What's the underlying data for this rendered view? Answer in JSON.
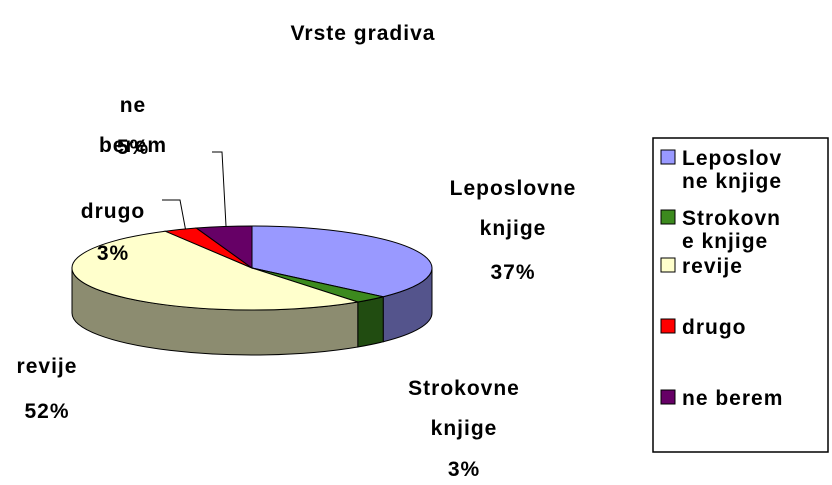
{
  "chart_data": {
    "type": "pie",
    "title": "Vrste gradiva",
    "categories": [
      "Leposlovne knjige",
      "Strokovne knjige",
      "revije",
      "drugo",
      "ne berem"
    ],
    "values": [
      37,
      3,
      52,
      3,
      5
    ],
    "value_labels": [
      "37%",
      "3%",
      "52%",
      "3%",
      "5%"
    ],
    "colors": [
      "#9999ff",
      "#3c8a1e",
      "#ffffcc",
      "#ff0000",
      "#660066"
    ],
    "legend": "right"
  }
}
